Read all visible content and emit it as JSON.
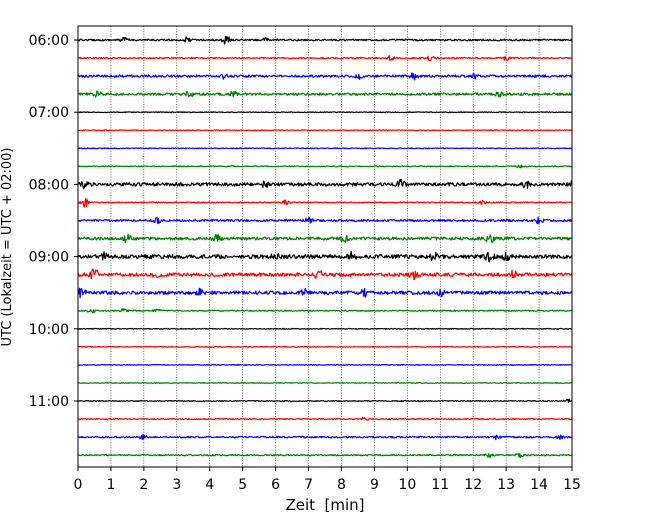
{
  "chart_data": {
    "type": "line",
    "title": "",
    "xlabel": "Zeit  [min]",
    "ylabel": "UTC (Lokalzeit = UTC + 02:00)",
    "xlim": [
      0,
      15
    ],
    "x_ticks": [
      "0",
      "1",
      "2",
      "3",
      "4",
      "5",
      "6",
      "7",
      "8",
      "9",
      "10",
      "11",
      "12",
      "13",
      "14",
      "15"
    ],
    "y_ticks": [
      "06:00",
      "07:00",
      "08:00",
      "09:00",
      "10:00",
      "11:00"
    ],
    "grid": "vertical dotted at each minute",
    "colors": [
      "#000000",
      "#ff0000",
      "#0000ff",
      "#008000"
    ],
    "series": [
      {
        "time": "06:00",
        "color": "#000000",
        "activity": 0.25,
        "bursts": [
          {
            "x": 1.4,
            "a": 0.5
          },
          {
            "x": 3.3,
            "a": 0.45
          },
          {
            "x": 4.5,
            "a": 1.0
          },
          {
            "x": 5.7,
            "a": 0.3
          }
        ]
      },
      {
        "time": "06:15",
        "color": "#ff0000",
        "activity": 0.15,
        "bursts": [
          {
            "x": 9.5,
            "a": 0.5
          },
          {
            "x": 10.7,
            "a": 0.45
          },
          {
            "x": 13.0,
            "a": 0.4
          }
        ]
      },
      {
        "time": "06:30",
        "color": "#0000ff",
        "activity": 0.4,
        "bursts": [
          {
            "x": 4.4,
            "a": 0.5
          },
          {
            "x": 8.5,
            "a": 0.55
          },
          {
            "x": 10.2,
            "a": 0.8
          },
          {
            "x": 12.0,
            "a": 0.5
          }
        ]
      },
      {
        "time": "06:45",
        "color": "#008000",
        "activity": 0.45,
        "bursts": [
          {
            "x": 0.6,
            "a": 0.5
          },
          {
            "x": 3.4,
            "a": 0.55
          },
          {
            "x": 4.7,
            "a": 0.5
          },
          {
            "x": 12.8,
            "a": 0.45
          }
        ]
      },
      {
        "time": "07:00",
        "color": "#000000",
        "activity": 0.0,
        "bursts": []
      },
      {
        "time": "07:15",
        "color": "#ff0000",
        "activity": 0.0,
        "bursts": []
      },
      {
        "time": "07:30",
        "color": "#0000ff",
        "activity": 0.0,
        "bursts": []
      },
      {
        "time": "07:45",
        "color": "#008000",
        "activity": 0.05,
        "bursts": [
          {
            "x": 13.4,
            "a": 0.3
          }
        ]
      },
      {
        "time": "08:00",
        "color": "#000000",
        "activity": 0.7,
        "bursts": [
          {
            "x": 0.2,
            "a": 0.7
          },
          {
            "x": 5.7,
            "a": 0.6
          },
          {
            "x": 9.8,
            "a": 0.7
          },
          {
            "x": 13.6,
            "a": 0.6
          },
          {
            "x": 15.0,
            "a": 0.5
          }
        ]
      },
      {
        "time": "08:15",
        "color": "#ff0000",
        "activity": 0.08,
        "bursts": [
          {
            "x": 0.2,
            "a": 0.9
          },
          {
            "x": 6.3,
            "a": 0.5
          },
          {
            "x": 12.3,
            "a": 0.4
          }
        ]
      },
      {
        "time": "08:30",
        "color": "#0000ff",
        "activity": 0.35,
        "bursts": [
          {
            "x": 2.4,
            "a": 0.5
          },
          {
            "x": 7.0,
            "a": 0.5
          },
          {
            "x": 14.0,
            "a": 0.55
          }
        ]
      },
      {
        "time": "08:45",
        "color": "#008000",
        "activity": 0.6,
        "bursts": [
          {
            "x": 1.5,
            "a": 0.7
          },
          {
            "x": 4.2,
            "a": 0.6
          },
          {
            "x": 8.1,
            "a": 0.55
          },
          {
            "x": 12.5,
            "a": 0.9
          }
        ]
      },
      {
        "time": "09:00",
        "color": "#000000",
        "activity": 0.85,
        "bursts": [
          {
            "x": 0.8,
            "a": 0.6
          },
          {
            "x": 6.0,
            "a": 0.6
          },
          {
            "x": 8.3,
            "a": 0.7
          },
          {
            "x": 10.8,
            "a": 0.7
          },
          {
            "x": 12.5,
            "a": 1.0
          },
          {
            "x": 13.0,
            "a": 0.8
          }
        ]
      },
      {
        "time": "09:15",
        "color": "#ff0000",
        "activity": 0.75,
        "bursts": [
          {
            "x": 0.5,
            "a": 1.0
          },
          {
            "x": 2.4,
            "a": 0.6
          },
          {
            "x": 7.3,
            "a": 0.9
          },
          {
            "x": 10.2,
            "a": 0.7
          },
          {
            "x": 13.2,
            "a": 0.8
          }
        ]
      },
      {
        "time": "09:30",
        "color": "#0000ff",
        "activity": 0.7,
        "bursts": [
          {
            "x": 0.1,
            "a": 0.8
          },
          {
            "x": 3.7,
            "a": 0.6
          },
          {
            "x": 6.9,
            "a": 0.6
          },
          {
            "x": 8.7,
            "a": 0.8
          },
          {
            "x": 11.0,
            "a": 0.5
          }
        ]
      },
      {
        "time": "09:45",
        "color": "#008000",
        "activity": 0.1,
        "bursts": [
          {
            "x": 0.4,
            "a": 0.5
          },
          {
            "x": 1.4,
            "a": 0.4
          },
          {
            "x": 2.4,
            "a": 0.35
          }
        ]
      },
      {
        "time": "10:00",
        "color": "#000000",
        "activity": 0.0,
        "bursts": []
      },
      {
        "time": "10:15",
        "color": "#ff0000",
        "activity": 0.0,
        "bursts": []
      },
      {
        "time": "10:30",
        "color": "#0000ff",
        "activity": 0.0,
        "bursts": []
      },
      {
        "time": "10:45",
        "color": "#008000",
        "activity": 0.0,
        "bursts": []
      },
      {
        "time": "11:00",
        "color": "#000000",
        "activity": 0.05,
        "bursts": [
          {
            "x": 14.9,
            "a": 0.3
          }
        ]
      },
      {
        "time": "11:15",
        "color": "#ff0000",
        "activity": 0.1,
        "bursts": [
          {
            "x": 8.7,
            "a": 0.4
          }
        ]
      },
      {
        "time": "11:30",
        "color": "#0000ff",
        "activity": 0.2,
        "bursts": [
          {
            "x": 2.0,
            "a": 0.5
          },
          {
            "x": 12.7,
            "a": 0.4
          },
          {
            "x": 14.6,
            "a": 0.4
          }
        ]
      },
      {
        "time": "11:45",
        "color": "#008000",
        "activity": 0.15,
        "bursts": [
          {
            "x": 12.5,
            "a": 0.4
          },
          {
            "x": 13.4,
            "a": 0.35
          }
        ]
      }
    ]
  }
}
